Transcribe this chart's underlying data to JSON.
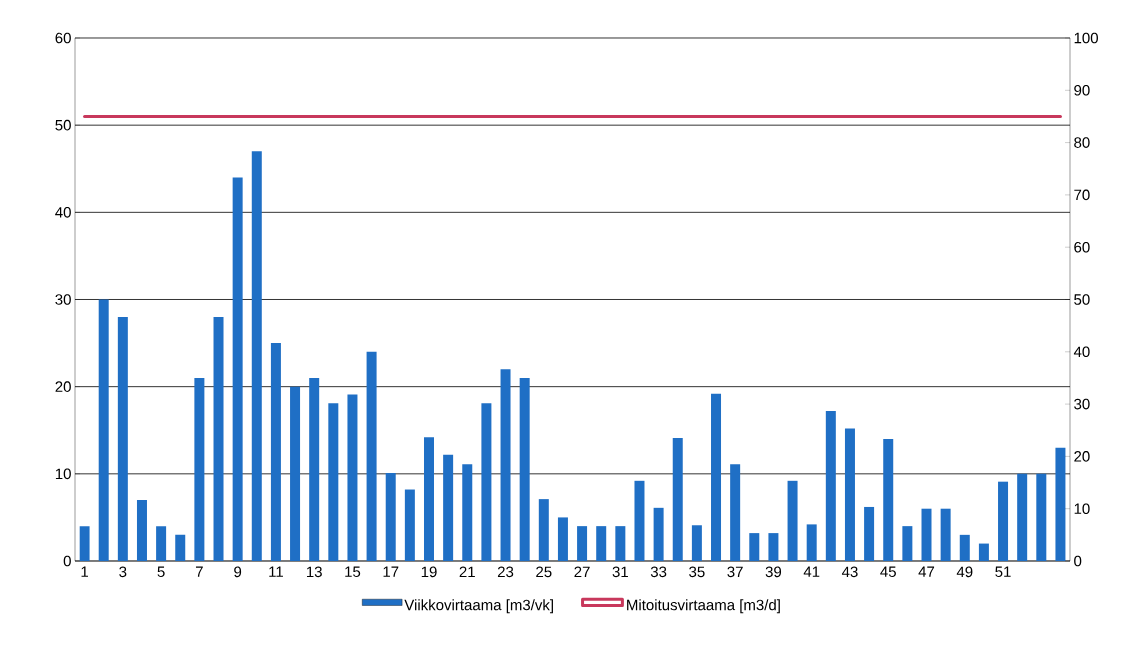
{
  "chart_data": {
    "type": "bar",
    "categories": [
      "1",
      null,
      "3",
      null,
      "5",
      null,
      "7",
      null,
      "9",
      null,
      "11",
      null,
      "13",
      null,
      "15",
      null,
      "17",
      null,
      "19",
      null,
      "21",
      null,
      "23",
      null,
      "25",
      null,
      "27",
      null,
      "31",
      null,
      "33",
      null,
      "35",
      null,
      "37",
      null,
      "39",
      null,
      "41",
      null,
      "43",
      null,
      "45",
      null,
      "47",
      null,
      "49",
      null,
      "51",
      null,
      null,
      null
    ],
    "series": [
      {
        "name": "Viikkovirtaama [m3/vk]",
        "color": "#1f6fc5",
        "values": [
          4,
          30,
          28,
          7,
          4,
          3,
          21,
          28,
          44,
          47,
          25,
          20,
          21,
          18.1,
          19.1,
          24,
          10.1,
          8.2,
          14.2,
          12.2,
          11.1,
          18.1,
          22,
          21,
          7.1,
          5,
          4,
          4,
          4,
          9.2,
          6.1,
          14.1,
          4.1,
          19.2,
          11.1,
          3.2,
          3.2,
          9.2,
          4.2,
          17.2,
          15.2,
          6.2,
          14,
          4,
          6,
          6,
          3,
          2,
          9.1,
          10,
          10,
          13
        ]
      },
      {
        "name": "Mitoitusvirtaama [m3/d]",
        "type": "line",
        "axis": "y2",
        "color": "#c8385c",
        "values": [
          85,
          85,
          85,
          85,
          85,
          85,
          85,
          85,
          85,
          85,
          85,
          85,
          85,
          85,
          85,
          85,
          85,
          85,
          85,
          85,
          85,
          85,
          85,
          85,
          85,
          85,
          85,
          85,
          85,
          85,
          85,
          85,
          85,
          85,
          85,
          85,
          85,
          85,
          85,
          85,
          85,
          85,
          85,
          85,
          85,
          85,
          85,
          85,
          85,
          85,
          85,
          85
        ]
      }
    ],
    "ylim": [
      0,
      60
    ],
    "yticks": [
      0,
      10,
      20,
      30,
      40,
      50,
      60
    ],
    "y2lim": [
      0,
      100
    ],
    "y2ticks": [
      0,
      10,
      20,
      30,
      40,
      50,
      60,
      70,
      80,
      90,
      100
    ],
    "grid": "y",
    "legend": "bottom",
    "marker": "none",
    "line_style": "solid"
  }
}
